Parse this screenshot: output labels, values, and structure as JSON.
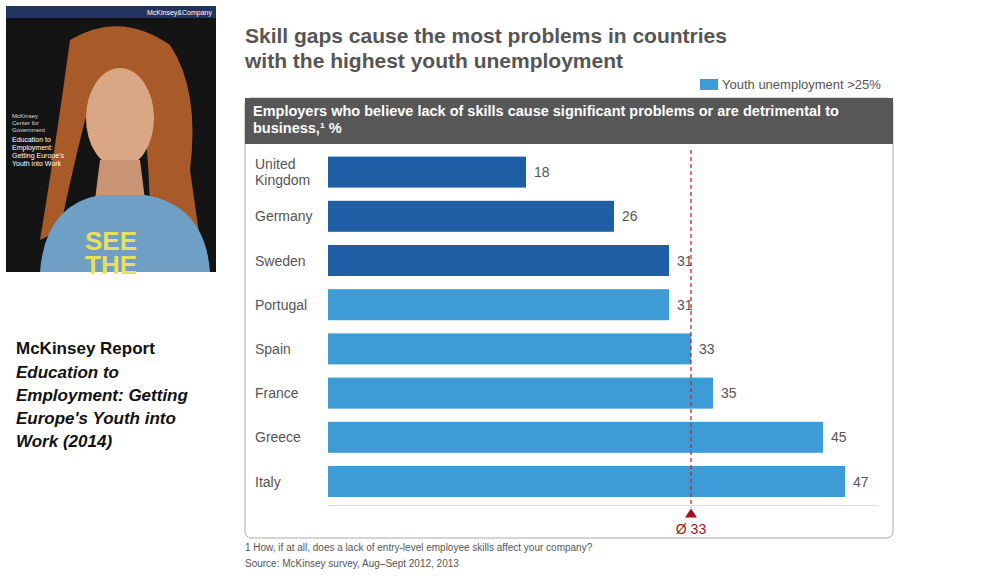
{
  "chart_data": {
    "type": "bar",
    "orientation": "horizontal",
    "title": "Skill gaps cause the most problems in countries with the highest youth unemployment",
    "subtitle": "Employers who believe lack of skills cause significant problems or are detrimental to business,¹ %",
    "categories": [
      "United Kingdom",
      "Germany",
      "Sweden",
      "Portugal",
      "Spain",
      "France",
      "Greece",
      "Italy"
    ],
    "values": [
      18,
      26,
      31,
      31,
      33,
      35,
      45,
      47
    ],
    "colors": [
      "#1f5fa6",
      "#1f5fa6",
      "#1f5fa6",
      "#3d9bd6",
      "#3d9bd6",
      "#3d9bd6",
      "#3d9bd6",
      "#3d9bd6"
    ],
    "xlim": [
      0,
      50
    ],
    "tick_labels": false,
    "grid": false,
    "data_labels": true,
    "legend": "top-right",
    "legend_items": [
      {
        "label": "Youth unemployment >25%",
        "color": "#3d9bd6"
      }
    ],
    "annotations": [
      {
        "x": 33,
        "text": "Ø 33"
      }
    ],
    "footnote": "1 How, if at all, does a lack of entry-level employee skills affect your company?",
    "source": "Source: McKinsey survey, Aug–Sept 2012, 2013"
  },
  "cover": {
    "publisher": "McKinsey&Company",
    "center": "McKinsey Center for Government",
    "title": "Education to Employment: Getting Europe's Youth into Work",
    "shirt_text": "SEE THE"
  },
  "caption": {
    "label": "McKinsey Report",
    "title": "Education to Employment: Getting Europe's Youth into Work (2014)"
  }
}
